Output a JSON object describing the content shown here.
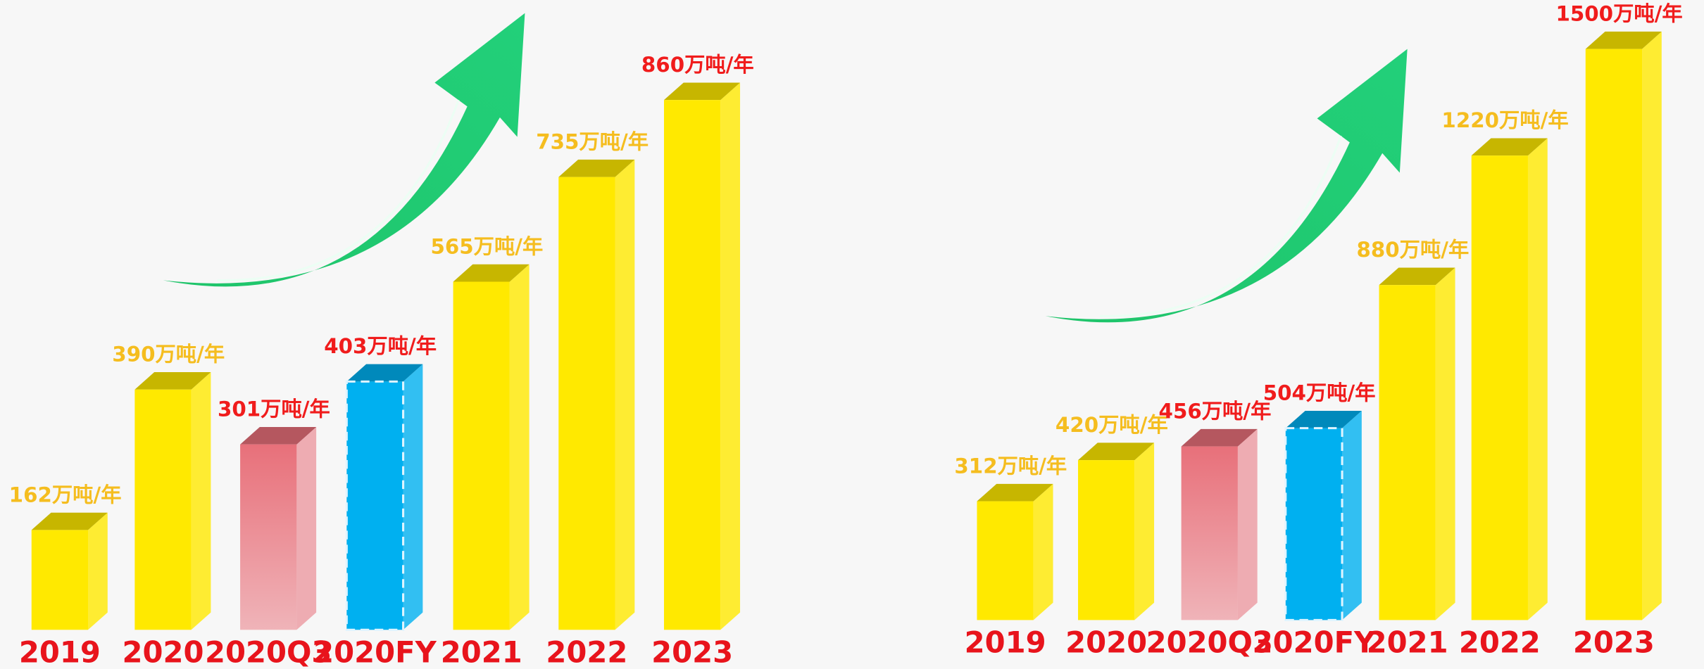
{
  "chart_data": [
    {
      "type": "bar3d",
      "categories": [
        "2019",
        "2020",
        "2020Q3",
        "2020FY",
        "2021",
        "2022",
        "2023"
      ],
      "values": [
        162,
        390,
        301,
        403,
        565,
        735,
        860
      ],
      "value_labels": [
        "162万吨/年",
        "390万吨/年",
        "301万吨/年",
        "403万吨/年",
        "565万吨/年",
        "735万吨/年",
        "860万吨/年"
      ],
      "colors": [
        "#ffe900",
        "#ffe900",
        "#e8707a",
        "#00b0f0",
        "#ffe900",
        "#ffe900",
        "#ffe900"
      ],
      "label_colors": [
        "#f5bd1f",
        "#f5bd1f",
        "#f01c1c",
        "#f01c1c",
        "#f5bd1f",
        "#f5bd1f",
        "#f01c1c"
      ]
    },
    {
      "type": "bar3d",
      "categories": [
        "2019",
        "2020",
        "2020Q3",
        "2020FY",
        "2021",
        "2022",
        "2023"
      ],
      "values": [
        312,
        420,
        456,
        504,
        880,
        1220,
        1500
      ],
      "value_labels": [
        "312万吨/年",
        "420万吨/年",
        "456万吨/年",
        "504万吨/年",
        "880万吨/年",
        "1220万吨/年",
        "1500万吨/年"
      ],
      "colors": [
        "#ffe900",
        "#ffe900",
        "#e8707a",
        "#00b0f0",
        "#ffe900",
        "#ffe900",
        "#ffe900"
      ],
      "label_colors": [
        "#f5bd1f",
        "#f5bd1f",
        "#f01c1c",
        "#f01c1c",
        "#f5bd1f",
        "#f5bd1f",
        "#f01c1c"
      ]
    }
  ]
}
